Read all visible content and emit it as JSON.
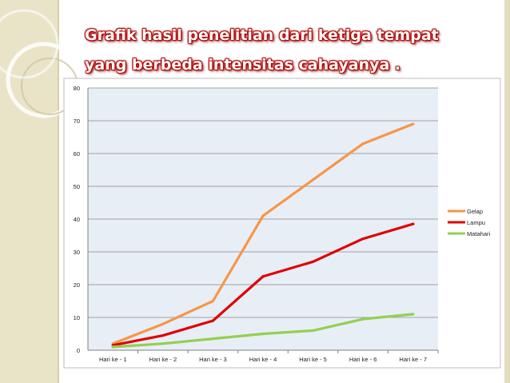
{
  "slide": {
    "title": "Grafik hasil penelitian dari ketiga tempat yang berbeda intensitas cahayanya ."
  },
  "colors": {
    "band": "#e9e3c8",
    "plot_bg": "#e8eef6",
    "grid": "#8a8a8a"
  },
  "chart_data": {
    "type": "line",
    "title": "",
    "xlabel": "",
    "ylabel": "",
    "categories": [
      "Hari ke - 1",
      "Hari ke - 2",
      "Hari ke - 3",
      "Hari ke - 4",
      "Hari ke - 5",
      "Hari ke - 6",
      "Hari ke - 7"
    ],
    "ylim": [
      0,
      80
    ],
    "yticks": [
      0,
      10,
      20,
      30,
      40,
      50,
      60,
      70,
      80
    ],
    "grid": true,
    "legend_position": "right",
    "series": [
      {
        "name": "Gelap",
        "color": "#f79646",
        "values": [
          2,
          8,
          15,
          41,
          52,
          63,
          69
        ]
      },
      {
        "name": "Lampu",
        "color": "#e00000",
        "values": [
          1.5,
          4.5,
          9,
          22.5,
          27,
          34,
          38.5
        ]
      },
      {
        "name": "Matahari",
        "color": "#92d050",
        "values": [
          1,
          2,
          3.5,
          5,
          6,
          9.5,
          11
        ]
      }
    ]
  }
}
